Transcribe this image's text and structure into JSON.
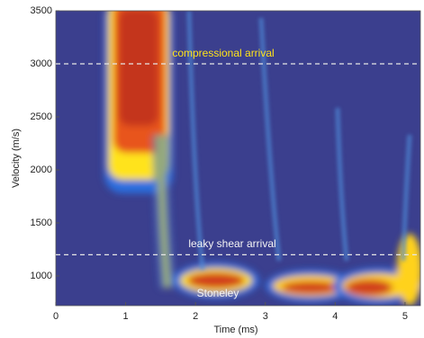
{
  "chart_data": {
    "type": "heatmap",
    "x_label": "Time (ms)",
    "y_label": "Velocity (m/s)",
    "xlim": [
      0,
      5.22
    ],
    "ylim": [
      720,
      3500
    ],
    "xticks": [
      0,
      1,
      2,
      3,
      4,
      5
    ],
    "yticks": [
      1000,
      1500,
      2000,
      2500,
      3000,
      3500
    ],
    "reference_lines": [
      3000,
      1200
    ],
    "annotations": [
      "compressional arrival",
      "leaky shear arrival",
      "Stoneley"
    ]
  }
}
